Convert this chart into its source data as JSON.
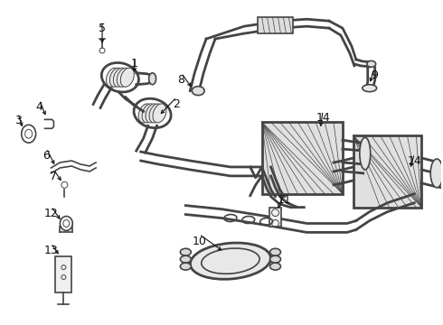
{
  "background_color": "#ffffff",
  "line_color": "#444444",
  "label_color": "#111111",
  "fig_width": 4.9,
  "fig_height": 3.6,
  "dpi": 100
}
